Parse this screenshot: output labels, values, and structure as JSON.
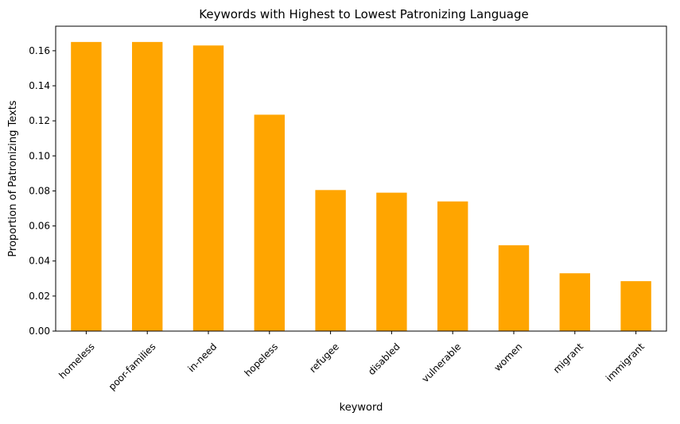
{
  "chart_data": {
    "type": "bar",
    "title": "Keywords with Highest to Lowest Patronizing Language",
    "xlabel": "keyword",
    "ylabel": "Proportion of Patronizing Texts",
    "categories": [
      "homeless",
      "poor-families",
      "in-need",
      "hopeless",
      "refugee",
      "disabled",
      "vulnerable",
      "women",
      "migrant",
      "immigrant"
    ],
    "values": [
      0.165,
      0.165,
      0.163,
      0.1235,
      0.0805,
      0.079,
      0.074,
      0.049,
      0.033,
      0.0285
    ],
    "ylim": [
      0,
      0.174
    ],
    "yticks": [
      "0.00",
      "0.02",
      "0.04",
      "0.06",
      "0.08",
      "0.10",
      "0.12",
      "0.14",
      "0.16"
    ],
    "bar_color": "#FFA500",
    "grid": false,
    "legend": false
  }
}
